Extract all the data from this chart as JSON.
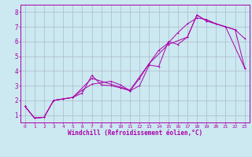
{
  "xlabel": "Windchill (Refroidissement éolien,°C)",
  "bg_color": "#cce8f0",
  "grid_color": "#aabbcc",
  "line_color": "#aa00aa",
  "xlim": [
    -0.5,
    23.5
  ],
  "ylim": [
    0.5,
    8.5
  ],
  "xticks": [
    0,
    1,
    2,
    3,
    4,
    5,
    6,
    7,
    8,
    9,
    10,
    11,
    12,
    13,
    14,
    15,
    16,
    17,
    18,
    19,
    20,
    21,
    22,
    23
  ],
  "yticks": [
    1,
    2,
    3,
    4,
    5,
    6,
    7,
    8
  ],
  "line1_x": [
    0,
    1,
    2,
    3,
    4,
    5,
    6,
    7,
    8,
    9,
    10,
    11,
    12,
    13,
    14,
    15,
    16,
    17,
    18,
    19,
    20,
    21,
    22,
    23
  ],
  "line1_y": [
    1.6,
    0.8,
    0.85,
    2.0,
    2.1,
    2.2,
    2.5,
    3.7,
    3.05,
    3.0,
    2.85,
    2.65,
    3.0,
    4.4,
    4.3,
    6.0,
    5.8,
    6.3,
    7.8,
    7.4,
    7.2,
    7.0,
    6.8,
    6.2
  ],
  "line2_x": [
    0,
    1,
    2,
    3,
    4,
    5,
    6,
    7,
    8,
    9,
    10,
    11,
    12,
    13,
    14,
    15,
    16,
    17,
    18,
    19,
    20,
    21,
    22,
    23
  ],
  "line2_y": [
    1.6,
    0.8,
    0.85,
    2.0,
    2.1,
    2.2,
    2.7,
    3.1,
    3.2,
    3.3,
    3.05,
    2.65,
    3.5,
    4.5,
    5.4,
    5.9,
    6.6,
    7.2,
    7.6,
    7.5,
    7.2,
    7.0,
    6.8,
    4.2
  ],
  "line3_x": [
    0,
    1,
    2,
    3,
    5,
    7,
    9,
    11,
    13,
    15,
    17,
    18,
    19,
    21,
    23
  ],
  "line3_y": [
    1.6,
    0.8,
    0.85,
    2.0,
    2.2,
    3.5,
    3.1,
    2.7,
    4.5,
    5.8,
    6.3,
    7.8,
    7.4,
    7.0,
    4.2
  ]
}
